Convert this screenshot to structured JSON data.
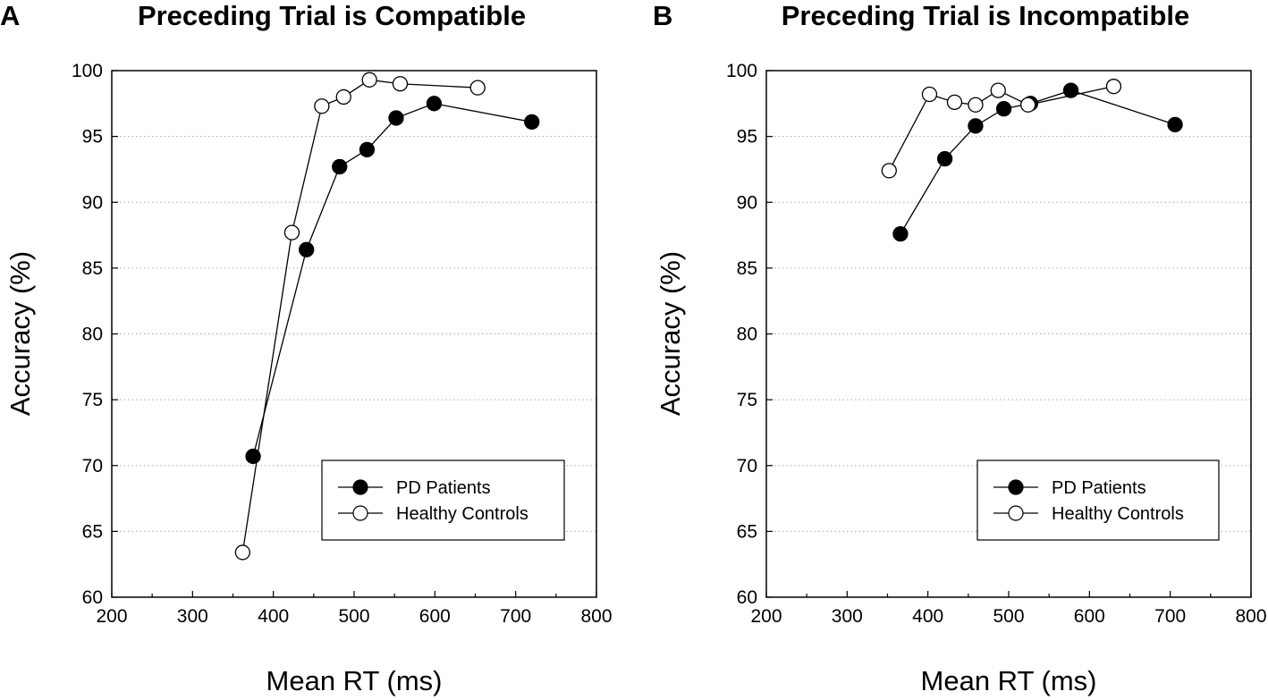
{
  "chart_data": [
    {
      "type": "line",
      "panel_label": "A",
      "title": "Preceding Trial is Compatible",
      "xlabel": "Mean RT (ms)",
      "ylabel": "Accuracy (%)",
      "xlim": [
        200,
        800
      ],
      "ylim": [
        60,
        100
      ],
      "xticks": [
        "200",
        "300",
        "400",
        "500",
        "600",
        "700",
        "800"
      ],
      "yticks": [
        "60",
        "65",
        "70",
        "75",
        "80",
        "85",
        "90",
        "95",
        "100"
      ],
      "grid": "horizontal dotted",
      "legend_position": "bottom-right",
      "series": [
        {
          "name": "PD Patients",
          "marker": "filled-circle",
          "x": [
            375,
            441,
            482,
            516,
            552,
            599,
            720
          ],
          "y": [
            70.7,
            86.4,
            92.7,
            94.0,
            96.4,
            97.5,
            96.1
          ]
        },
        {
          "name": "Healthy Controls",
          "marker": "open-circle",
          "x": [
            362,
            423,
            460,
            487,
            519,
            557,
            653
          ],
          "y": [
            63.4,
            87.7,
            97.3,
            98.0,
            99.3,
            99.0,
            98.7
          ]
        }
      ]
    },
    {
      "type": "line",
      "panel_label": "B",
      "title": "Preceding Trial is Incompatible",
      "xlabel": "Mean RT (ms)",
      "ylabel": "Accuracy (%)",
      "xlim": [
        200,
        800
      ],
      "ylim": [
        60,
        100
      ],
      "xticks": [
        "200",
        "300",
        "400",
        "500",
        "600",
        "700",
        "800"
      ],
      "yticks": [
        "60",
        "65",
        "70",
        "75",
        "80",
        "85",
        "90",
        "95",
        "100"
      ],
      "grid": "horizontal dotted",
      "legend_position": "bottom-right",
      "series": [
        {
          "name": "PD Patients",
          "marker": "filled-circle",
          "x": [
            366,
            421,
            459,
            494,
            527,
            577,
            706
          ],
          "y": [
            87.6,
            93.3,
            95.8,
            97.1,
            97.5,
            98.5,
            95.9
          ]
        },
        {
          "name": "Healthy Controls",
          "marker": "open-circle",
          "x": [
            352,
            402,
            433,
            459,
            487,
            524,
            630
          ],
          "y": [
            92.4,
            98.2,
            97.6,
            97.4,
            98.5,
            97.4,
            98.8
          ]
        }
      ]
    }
  ]
}
